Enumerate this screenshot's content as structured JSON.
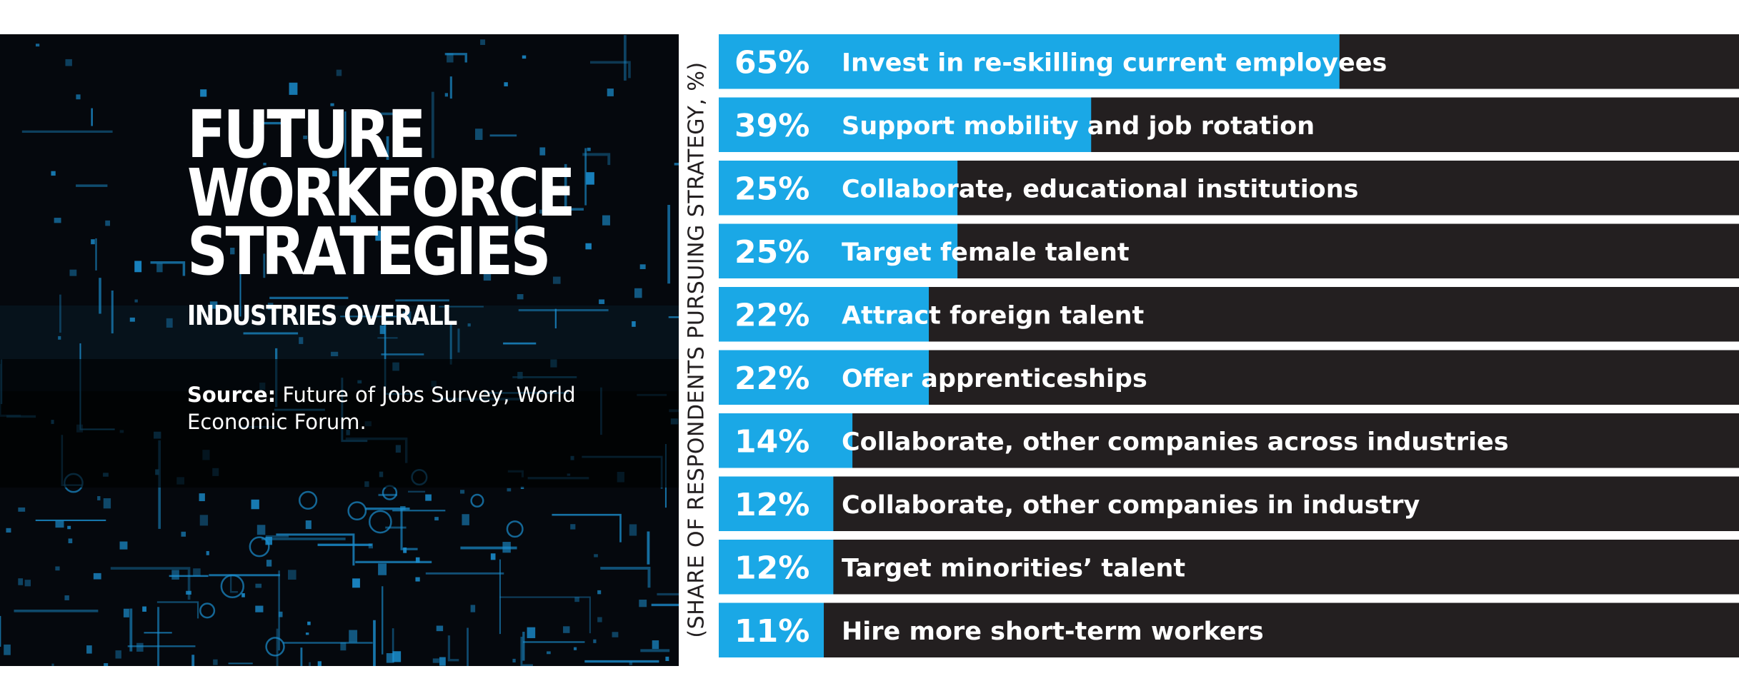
{
  "panel": {
    "title_lines": [
      "FUTURE",
      "WORKFORCE",
      "STRATEGIES"
    ],
    "subtitle": "INDUSTRIES OVERALL",
    "source_label": "Source:",
    "source_text": " Future of Jobs Survey, World Economic Forum."
  },
  "colors": {
    "bar_fill": "#1aa8e6",
    "track": "#231f20",
    "panel_bg": "#05080d",
    "circuit": "#1b8fd0"
  },
  "chart_data": {
    "type": "bar",
    "orientation": "horizontal",
    "ylabel": "(SHARE OF RESPONDENTS PURSUING STRATEGY, %)",
    "xlim": [
      0,
      100
    ],
    "categories": [
      "Invest in re-skilling current employees",
      "Support mobility and job rotation",
      "Collaborate, educational institutions",
      "Target female talent",
      "Attract foreign talent",
      "Offer apprenticeships",
      "Collaborate, other companies across industries",
      "Collaborate, other companies in industry",
      "Target minorities’ talent",
      "Hire more short-term workers"
    ],
    "values": [
      65,
      39,
      25,
      25,
      22,
      22,
      14,
      12,
      12,
      11
    ],
    "value_labels": [
      "65%",
      "39%",
      "25%",
      "25%",
      "22%",
      "22%",
      "14%",
      "12%",
      "12%",
      "11%"
    ]
  }
}
